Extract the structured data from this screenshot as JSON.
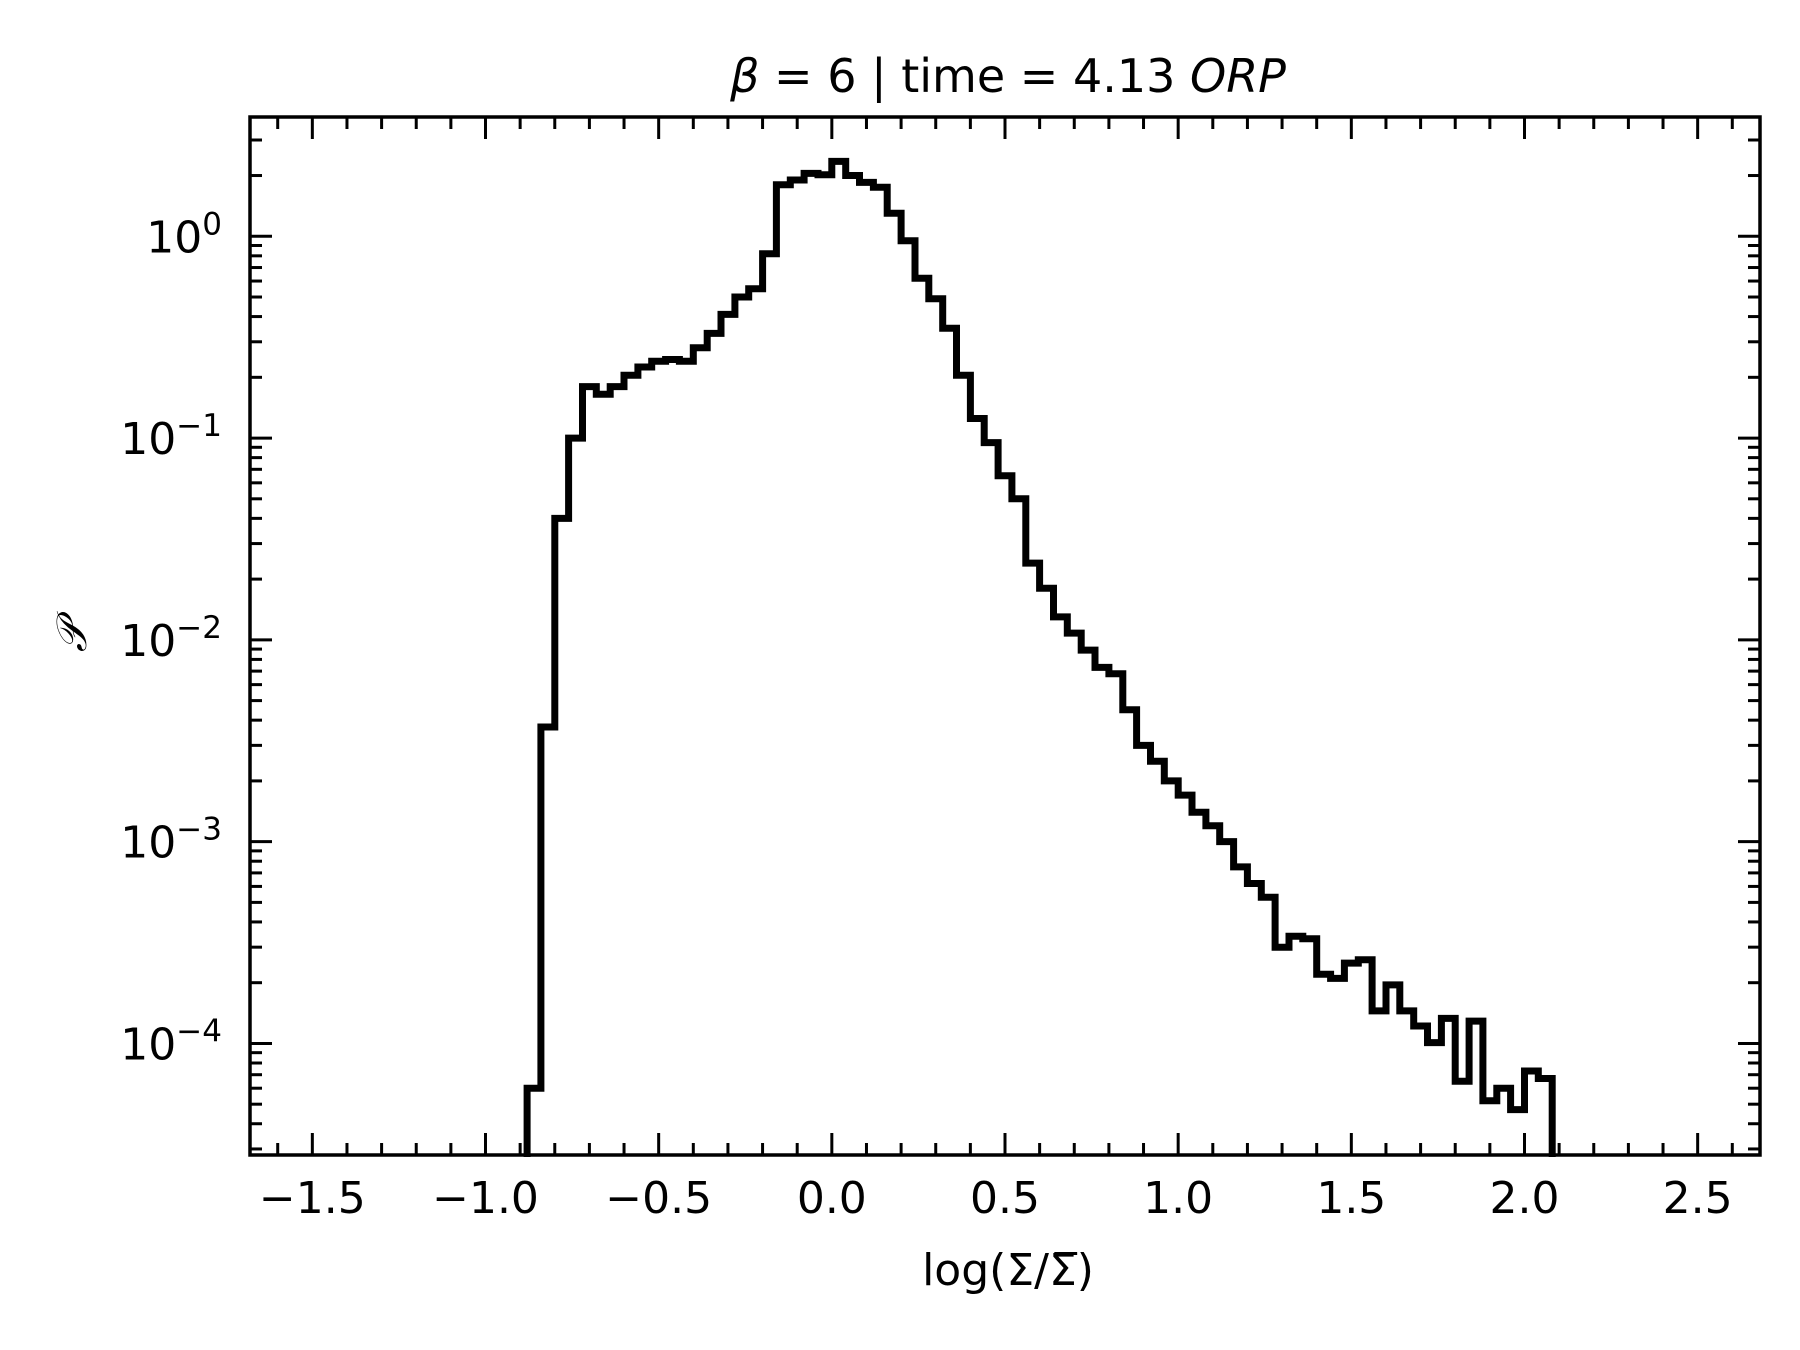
{
  "chart_data": {
    "type": "histogram",
    "title_parts": [
      "β",
      " = 6 | time = 4.13 ",
      "ORP"
    ],
    "xlabel": "log(Σ/Σ̅)",
    "ylabel": "𝒫",
    "x_scale": "linear",
    "y_scale": "log",
    "xlim": [
      -1.68,
      2.68
    ],
    "ylim": [
      2.8e-05,
      3.9
    ],
    "x_ticks": [
      -1.5,
      -1.0,
      -0.5,
      0.0,
      0.5,
      1.0,
      1.5,
      2.0,
      2.5
    ],
    "x_tick_labels": [
      "−1.5",
      "−1.0",
      "−0.5",
      "0.0",
      "0.5",
      "1.0",
      "1.5",
      "2.0",
      "2.5"
    ],
    "y_ticks": [
      1,
      0.1,
      0.01,
      0.001,
      0.0001
    ],
    "y_tick_base": "10",
    "y_tick_exponents": [
      "0",
      "−1",
      "−2",
      "−3",
      "−4"
    ],
    "line_color": "#000000",
    "grid": false,
    "bin_width": 0.04,
    "bin_start": -0.88,
    "values": [
      6e-05,
      0.0037,
      0.04,
      0.1,
      0.18,
      0.165,
      0.18,
      0.205,
      0.225,
      0.24,
      0.245,
      0.24,
      0.28,
      0.33,
      0.41,
      0.5,
      0.55,
      0.82,
      1.8,
      1.9,
      2.05,
      2.02,
      2.35,
      2.0,
      1.85,
      1.75,
      1.3,
      0.95,
      0.62,
      0.49,
      0.35,
      0.205,
      0.125,
      0.095,
      0.065,
      0.05,
      0.024,
      0.018,
      0.013,
      0.0108,
      0.0089,
      0.0073,
      0.0068,
      0.0045,
      0.003,
      0.0025,
      0.002,
      0.0017,
      0.0014,
      0.0012,
      0.001,
      0.00075,
      0.00062,
      0.00053,
      0.0003,
      0.00034,
      0.00033,
      0.00022,
      0.00021,
      0.00025,
      0.00026,
      0.000145,
      0.000195,
      0.000145,
      0.000122,
      0.000101,
      0.000133,
      6.5e-05,
      0.000129,
      5.2e-05,
      6e-05,
      4.7e-05,
      7.3e-05,
      6.7e-05
    ]
  }
}
